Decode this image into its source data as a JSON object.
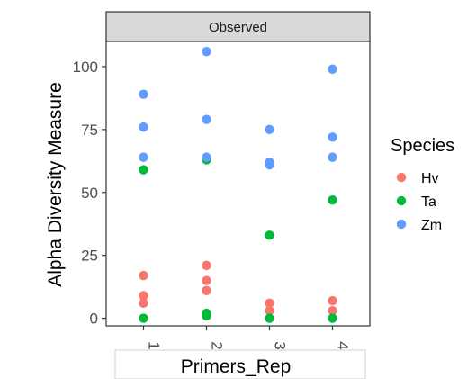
{
  "chart_data": {
    "type": "scatter",
    "facet_label": "Observed",
    "xlabel": "Primers_Rep",
    "ylabel": "Alpha Diversity Measure",
    "categories": [
      "1",
      "2",
      "3",
      "4"
    ],
    "yticks": [
      0,
      25,
      50,
      75,
      100
    ],
    "ylim": [
      -3,
      110
    ],
    "grid": false,
    "legend": {
      "title": "Species",
      "position": "right"
    },
    "series": [
      {
        "name": "Hv",
        "color": "#F8766D",
        "points": [
          {
            "x": "1",
            "y": 17
          },
          {
            "x": "1",
            "y": 9
          },
          {
            "x": "1",
            "y": 6
          },
          {
            "x": "2",
            "y": 21
          },
          {
            "x": "2",
            "y": 15
          },
          {
            "x": "2",
            "y": 11
          },
          {
            "x": "3",
            "y": 6
          },
          {
            "x": "3",
            "y": 3
          },
          {
            "x": "4",
            "y": 7
          },
          {
            "x": "4",
            "y": 3
          }
        ]
      },
      {
        "name": "Ta",
        "color": "#00BA38",
        "points": [
          {
            "x": "1",
            "y": 59
          },
          {
            "x": "1",
            "y": 0
          },
          {
            "x": "2",
            "y": 63
          },
          {
            "x": "2",
            "y": 2
          },
          {
            "x": "2",
            "y": 1
          },
          {
            "x": "3",
            "y": 33
          },
          {
            "x": "3",
            "y": 0
          },
          {
            "x": "4",
            "y": 47
          },
          {
            "x": "4",
            "y": 0
          }
        ]
      },
      {
        "name": "Zm",
        "color": "#619CFF",
        "points": [
          {
            "x": "1",
            "y": 89
          },
          {
            "x": "1",
            "y": 76
          },
          {
            "x": "1",
            "y": 64
          },
          {
            "x": "2",
            "y": 106
          },
          {
            "x": "2",
            "y": 79
          },
          {
            "x": "2",
            "y": 64
          },
          {
            "x": "3",
            "y": 75
          },
          {
            "x": "3",
            "y": 62
          },
          {
            "x": "3",
            "y": 61
          },
          {
            "x": "4",
            "y": 99
          },
          {
            "x": "4",
            "y": 72
          },
          {
            "x": "4",
            "y": 64
          }
        ]
      }
    ]
  }
}
